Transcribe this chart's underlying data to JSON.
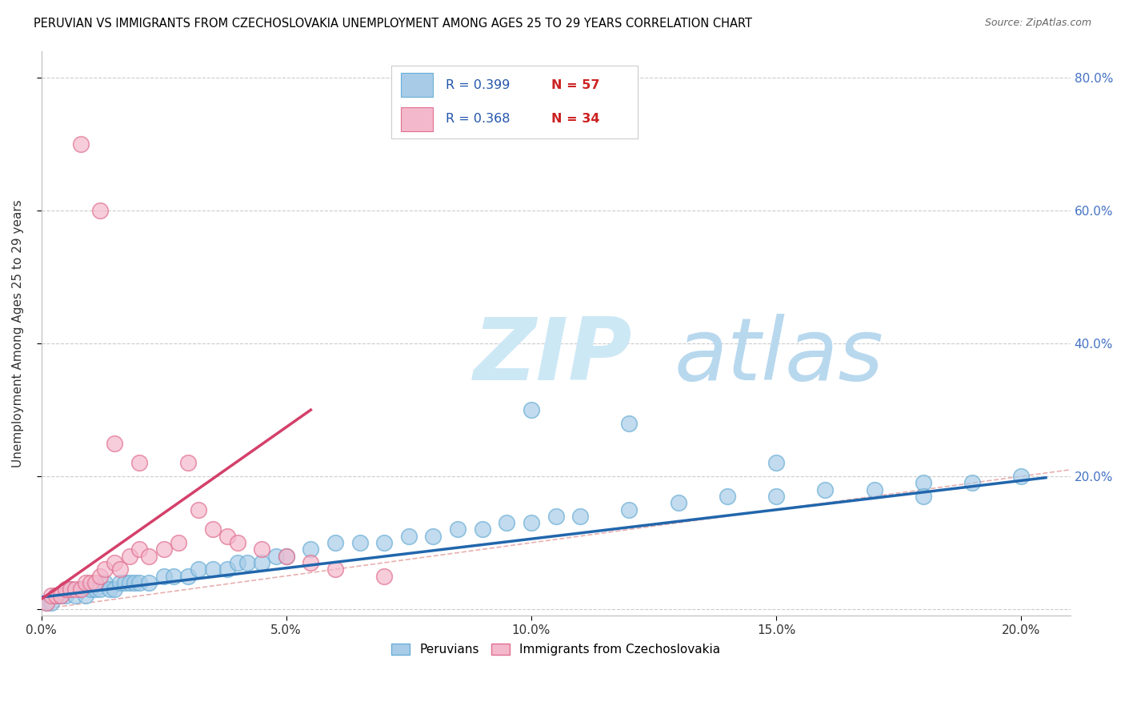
{
  "title": "PERUVIAN VS IMMIGRANTS FROM CZECHOSLOVAKIA UNEMPLOYMENT AMONG AGES 25 TO 29 YEARS CORRELATION CHART",
  "source": "Source: ZipAtlas.com",
  "ylabel": "Unemployment Among Ages 25 to 29 years",
  "xlim": [
    0.0,
    0.21
  ],
  "ylim": [
    -0.01,
    0.84
  ],
  "xticks": [
    0.0,
    0.05,
    0.1,
    0.15,
    0.2
  ],
  "yticks": [
    0.0,
    0.2,
    0.4,
    0.6,
    0.8
  ],
  "xtick_labels": [
    "0.0%",
    "5.0%",
    "10.0%",
    "15.0%",
    "20.0%"
  ],
  "right_ytick_labels": [
    "",
    "20.0%",
    "40.0%",
    "60.0%",
    "80.0%"
  ],
  "blue_color": "#a8cce8",
  "blue_edge_color": "#6aaed6",
  "pink_color": "#f4b8cc",
  "pink_edge_color": "#e07090",
  "blue_line_color": "#2166ac",
  "pink_line_color": "#d4406a",
  "ref_line_color": "#e8b0b0",
  "watermark_color": "#cde8f5",
  "blue_trend_x": [
    0.0,
    0.205
  ],
  "blue_trend_y": [
    0.018,
    0.198
  ],
  "pink_trend_x": [
    0.0,
    0.055
  ],
  "pink_trend_y": [
    0.015,
    0.3
  ],
  "blue_scatter_x": [
    0.001,
    0.002,
    0.003,
    0.004,
    0.005,
    0.006,
    0.007,
    0.008,
    0.009,
    0.01,
    0.011,
    0.012,
    0.013,
    0.014,
    0.015,
    0.016,
    0.017,
    0.018,
    0.019,
    0.02,
    0.022,
    0.025,
    0.027,
    0.03,
    0.032,
    0.035,
    0.038,
    0.04,
    0.042,
    0.045,
    0.048,
    0.05,
    0.055,
    0.06,
    0.065,
    0.07,
    0.075,
    0.08,
    0.085,
    0.09,
    0.095,
    0.1,
    0.105,
    0.11,
    0.12,
    0.13,
    0.14,
    0.15,
    0.16,
    0.17,
    0.18,
    0.19,
    0.2,
    0.1,
    0.12,
    0.15,
    0.18
  ],
  "blue_scatter_y": [
    0.01,
    0.01,
    0.02,
    0.02,
    0.02,
    0.03,
    0.02,
    0.03,
    0.02,
    0.03,
    0.03,
    0.03,
    0.04,
    0.03,
    0.03,
    0.04,
    0.04,
    0.04,
    0.04,
    0.04,
    0.04,
    0.05,
    0.05,
    0.05,
    0.06,
    0.06,
    0.06,
    0.07,
    0.07,
    0.07,
    0.08,
    0.08,
    0.09,
    0.1,
    0.1,
    0.1,
    0.11,
    0.11,
    0.12,
    0.12,
    0.13,
    0.13,
    0.14,
    0.14,
    0.15,
    0.16,
    0.17,
    0.17,
    0.18,
    0.18,
    0.19,
    0.19,
    0.2,
    0.3,
    0.28,
    0.22,
    0.17
  ],
  "pink_scatter_x": [
    0.001,
    0.002,
    0.003,
    0.004,
    0.005,
    0.006,
    0.007,
    0.008,
    0.009,
    0.01,
    0.011,
    0.012,
    0.013,
    0.015,
    0.016,
    0.018,
    0.02,
    0.022,
    0.025,
    0.028,
    0.03,
    0.032,
    0.035,
    0.038,
    0.04,
    0.045,
    0.05,
    0.055,
    0.06,
    0.07,
    0.008,
    0.012,
    0.015,
    0.02
  ],
  "pink_scatter_y": [
    0.01,
    0.02,
    0.02,
    0.02,
    0.03,
    0.03,
    0.03,
    0.03,
    0.04,
    0.04,
    0.04,
    0.05,
    0.06,
    0.07,
    0.06,
    0.08,
    0.09,
    0.08,
    0.09,
    0.1,
    0.22,
    0.15,
    0.12,
    0.11,
    0.1,
    0.09,
    0.08,
    0.07,
    0.06,
    0.05,
    0.7,
    0.6,
    0.25,
    0.22
  ]
}
